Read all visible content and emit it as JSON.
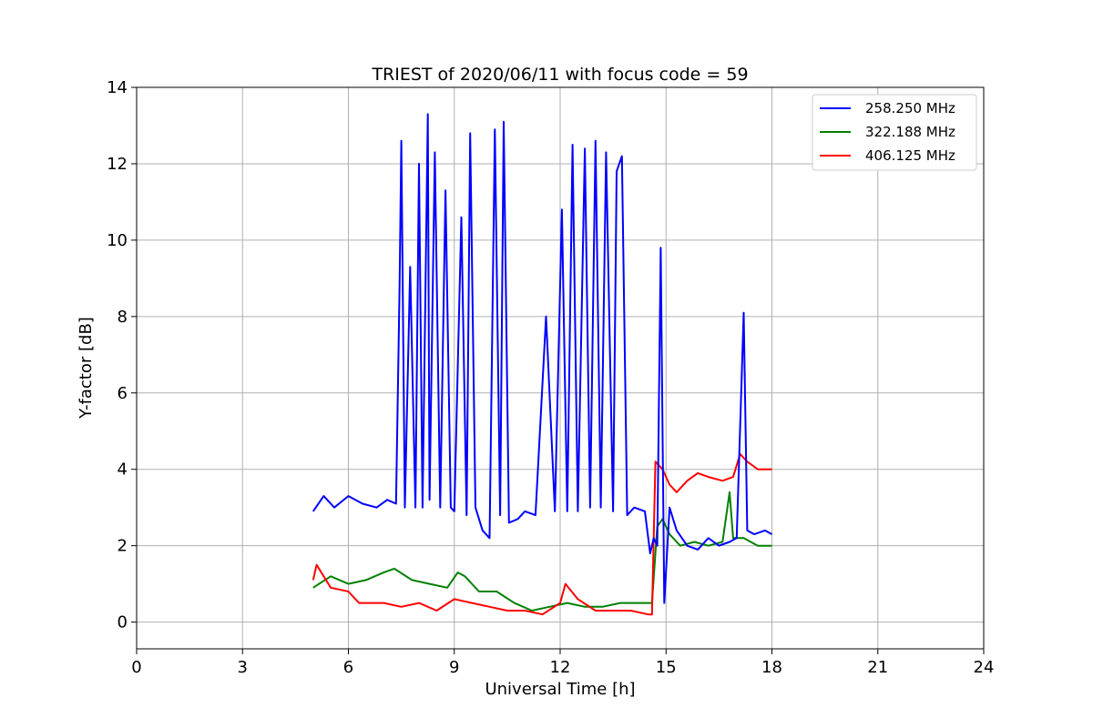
{
  "chart_data": {
    "type": "line",
    "title": "TRIEST of 2020/06/11 with focus code = 59",
    "xlabel": "Universal Time [h]",
    "ylabel": "Y-factor [dB]",
    "xlim": [
      0,
      24
    ],
    "ylim": [
      -0.7,
      14
    ],
    "xticks": [
      0,
      3,
      6,
      9,
      12,
      15,
      18,
      21,
      24
    ],
    "yticks": [
      0,
      2,
      4,
      6,
      8,
      10,
      12,
      14
    ],
    "grid": true,
    "legend_position": "top-right",
    "series": [
      {
        "name": "258.250 MHz",
        "color": "#0000ff",
        "x": [
          5.0,
          5.3,
          5.6,
          6.0,
          6.4,
          6.8,
          7.1,
          7.35,
          7.45,
          7.5,
          7.6,
          7.75,
          7.9,
          8.0,
          8.1,
          8.25,
          8.3,
          8.45,
          8.6,
          8.75,
          8.9,
          9.0,
          9.2,
          9.35,
          9.45,
          9.6,
          9.8,
          10.0,
          10.15,
          10.3,
          10.4,
          10.55,
          10.8,
          11.0,
          11.3,
          11.6,
          11.85,
          12.05,
          12.2,
          12.35,
          12.5,
          12.7,
          12.85,
          13.0,
          13.15,
          13.3,
          13.5,
          13.6,
          13.75,
          13.9,
          14.1,
          14.4,
          14.55,
          14.65,
          14.75,
          14.85,
          14.95,
          15.1,
          15.3,
          15.6,
          15.9,
          16.2,
          16.5,
          16.8,
          17.0,
          17.2,
          17.3,
          17.5,
          17.8,
          18.0
        ],
        "y": [
          2.9,
          3.3,
          3.0,
          3.3,
          3.1,
          3.0,
          3.2,
          3.1,
          8.8,
          12.6,
          3.0,
          9.3,
          3.0,
          12.0,
          3.0,
          13.3,
          3.2,
          12.3,
          3.0,
          11.3,
          3.0,
          2.9,
          10.6,
          2.8,
          12.8,
          3.0,
          2.4,
          2.2,
          12.9,
          2.8,
          13.1,
          2.6,
          2.7,
          2.9,
          2.8,
          8.0,
          2.9,
          10.8,
          2.9,
          12.5,
          2.9,
          12.4,
          3.0,
          12.6,
          3.0,
          12.3,
          2.9,
          11.8,
          12.2,
          2.8,
          3.0,
          2.9,
          1.8,
          2.2,
          2.0,
          9.8,
          0.5,
          3.0,
          2.4,
          2.0,
          1.9,
          2.2,
          2.0,
          2.1,
          2.2,
          8.1,
          2.4,
          2.3,
          2.4,
          2.3
        ]
      },
      {
        "name": "322.188 MHz",
        "color": "#008000",
        "x": [
          5.0,
          5.5,
          6.0,
          6.5,
          7.0,
          7.3,
          7.8,
          8.3,
          8.8,
          9.1,
          9.3,
          9.7,
          10.2,
          10.7,
          11.2,
          11.7,
          12.2,
          12.7,
          13.2,
          13.7,
          14.2,
          14.6,
          14.75,
          14.9,
          15.1,
          15.4,
          15.8,
          16.2,
          16.6,
          16.8,
          16.9,
          17.2,
          17.6,
          18.0
        ],
        "y": [
          0.9,
          1.2,
          1.0,
          1.1,
          1.3,
          1.4,
          1.1,
          1.0,
          0.9,
          1.3,
          1.2,
          0.8,
          0.8,
          0.5,
          0.3,
          0.4,
          0.5,
          0.4,
          0.4,
          0.5,
          0.5,
          0.5,
          2.5,
          2.7,
          2.3,
          2.0,
          2.1,
          2.0,
          2.1,
          3.4,
          2.2,
          2.2,
          2.0,
          2.0
        ]
      },
      {
        "name": "406.125 MHz",
        "color": "#ff0000",
        "x": [
          5.0,
          5.1,
          5.5,
          6.0,
          6.3,
          7.0,
          7.5,
          8.0,
          8.5,
          9.0,
          9.5,
          10.0,
          10.5,
          11.0,
          11.5,
          12.0,
          12.15,
          12.5,
          13.0,
          13.5,
          14.0,
          14.5,
          14.6,
          14.7,
          14.9,
          15.1,
          15.3,
          15.6,
          15.9,
          16.2,
          16.6,
          16.9,
          17.1,
          17.3,
          17.6,
          18.0
        ],
        "y": [
          1.1,
          1.5,
          0.9,
          0.8,
          0.5,
          0.5,
          0.4,
          0.5,
          0.3,
          0.6,
          0.5,
          0.4,
          0.3,
          0.3,
          0.2,
          0.5,
          1.0,
          0.6,
          0.3,
          0.3,
          0.3,
          0.2,
          0.2,
          4.2,
          4.0,
          3.6,
          3.4,
          3.7,
          3.9,
          3.8,
          3.7,
          3.8,
          4.4,
          4.2,
          4.0,
          4.0
        ]
      }
    ]
  }
}
